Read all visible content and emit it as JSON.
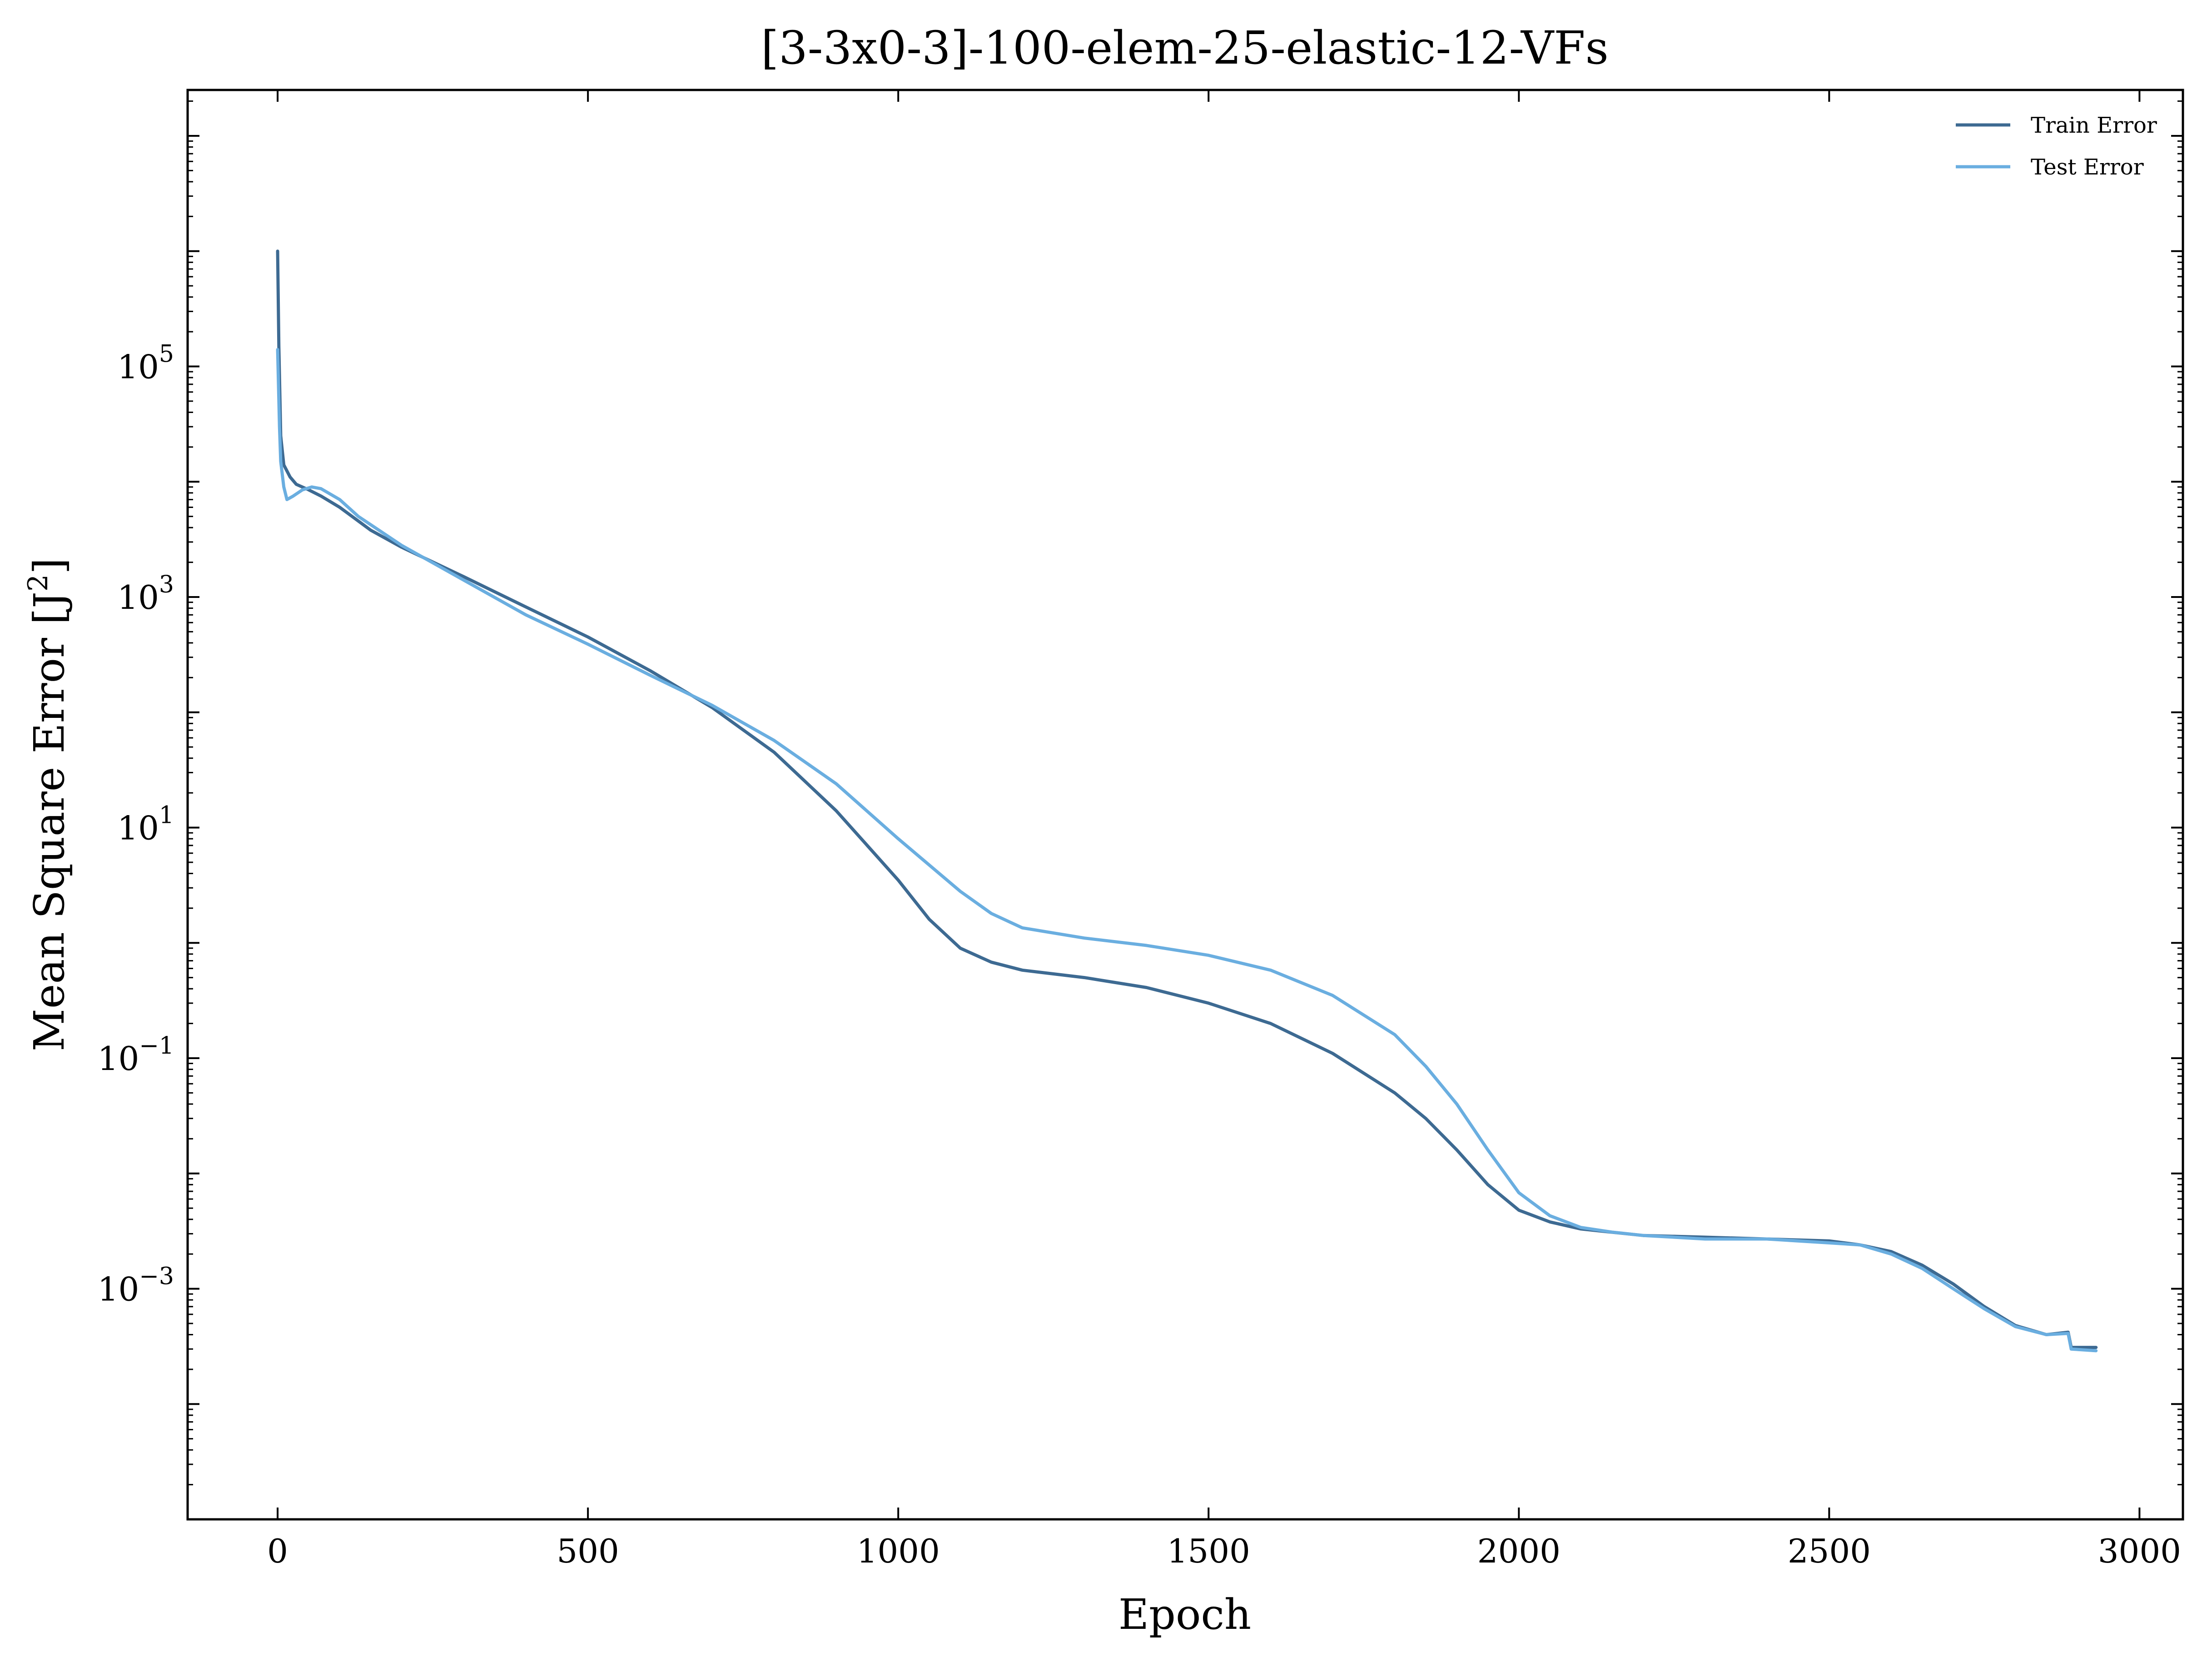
{
  "chart_data": {
    "type": "line",
    "title": "[3-3x0-3]-100-elem-25-elastic-12-VFs",
    "xlabel": "Epoch",
    "ylabel": "Mean Square Error [J",
    "ylabel_superscript": "2",
    "ylabel_suffix": "]",
    "y_scale": "log",
    "xlim": [
      -145,
      3070
    ],
    "ylim": [
      1e-05,
      25000000
    ],
    "grid": false,
    "legend_position": "top-right",
    "x_ticks": [
      {
        "value": 0,
        "label": "0"
      },
      {
        "value": 500,
        "label": "500"
      },
      {
        "value": 1000,
        "label": "1000"
      },
      {
        "value": 1500,
        "label": "1500"
      },
      {
        "value": 2000,
        "label": "2000"
      },
      {
        "value": 2500,
        "label": "2500"
      },
      {
        "value": 3000,
        "label": "3000"
      }
    ],
    "y_ticks": [
      {
        "value": 100000,
        "base": "10",
        "exp": "5"
      },
      {
        "value": 1000,
        "base": "10",
        "exp": "3"
      },
      {
        "value": 10,
        "base": "10",
        "exp": "1"
      },
      {
        "value": 0.1,
        "base": "10",
        "exp": "−1"
      },
      {
        "value": 0.001,
        "base": "10",
        "exp": "−3"
      }
    ],
    "series": [
      {
        "name": "Train Error",
        "color": "#3d6a92",
        "points": [
          [
            0,
            1000000
          ],
          [
            2,
            150000
          ],
          [
            5,
            25000
          ],
          [
            10,
            14000
          ],
          [
            20,
            11000
          ],
          [
            30,
            9500
          ],
          [
            50,
            8500
          ],
          [
            70,
            7500
          ],
          [
            100,
            6000
          ],
          [
            150,
            3800
          ],
          [
            200,
            2700
          ],
          [
            300,
            1500
          ],
          [
            400,
            820
          ],
          [
            500,
            450
          ],
          [
            600,
            230
          ],
          [
            700,
            110
          ],
          [
            800,
            45
          ],
          [
            900,
            14
          ],
          [
            1000,
            3.5
          ],
          [
            1050,
            1.6
          ],
          [
            1100,
            0.9
          ],
          [
            1150,
            0.68
          ],
          [
            1200,
            0.58
          ],
          [
            1300,
            0.5
          ],
          [
            1400,
            0.41
          ],
          [
            1500,
            0.3
          ],
          [
            1600,
            0.2
          ],
          [
            1700,
            0.11
          ],
          [
            1800,
            0.05
          ],
          [
            1850,
            0.03
          ],
          [
            1900,
            0.016
          ],
          [
            1950,
            0.008
          ],
          [
            2000,
            0.0048
          ],
          [
            2050,
            0.0038
          ],
          [
            2100,
            0.0033
          ],
          [
            2200,
            0.0029
          ],
          [
            2300,
            0.0028
          ],
          [
            2400,
            0.0027
          ],
          [
            2500,
            0.0026
          ],
          [
            2550,
            0.0024
          ],
          [
            2600,
            0.0021
          ],
          [
            2650,
            0.0016
          ],
          [
            2700,
            0.0011
          ],
          [
            2750,
            0.0007
          ],
          [
            2800,
            0.00048
          ],
          [
            2850,
            0.0004
          ],
          [
            2885,
            0.00042
          ],
          [
            2890,
            0.00031
          ],
          [
            2930,
            0.00031
          ]
        ]
      },
      {
        "name": "Test Error",
        "color": "#6aaee0",
        "points": [
          [
            0,
            140000
          ],
          [
            3,
            30000
          ],
          [
            5,
            15000
          ],
          [
            10,
            9000
          ],
          [
            15,
            7000
          ],
          [
            25,
            7500
          ],
          [
            40,
            8500
          ],
          [
            55,
            9000
          ],
          [
            70,
            8700
          ],
          [
            100,
            7000
          ],
          [
            130,
            5000
          ],
          [
            200,
            2800
          ],
          [
            300,
            1400
          ],
          [
            400,
            700
          ],
          [
            500,
            390
          ],
          [
            600,
            210
          ],
          [
            700,
            115
          ],
          [
            800,
            57
          ],
          [
            900,
            24
          ],
          [
            1000,
            8
          ],
          [
            1100,
            2.8
          ],
          [
            1150,
            1.8
          ],
          [
            1200,
            1.35
          ],
          [
            1300,
            1.1
          ],
          [
            1400,
            0.95
          ],
          [
            1500,
            0.78
          ],
          [
            1600,
            0.58
          ],
          [
            1700,
            0.35
          ],
          [
            1800,
            0.16
          ],
          [
            1850,
            0.085
          ],
          [
            1900,
            0.04
          ],
          [
            1950,
            0.016
          ],
          [
            2000,
            0.0068
          ],
          [
            2050,
            0.0043
          ],
          [
            2100,
            0.0034
          ],
          [
            2150,
            0.0031
          ],
          [
            2200,
            0.0029
          ],
          [
            2300,
            0.0027
          ],
          [
            2400,
            0.0027
          ],
          [
            2500,
            0.0025
          ],
          [
            2550,
            0.0024
          ],
          [
            2600,
            0.002
          ],
          [
            2650,
            0.0015
          ],
          [
            2700,
            0.001
          ],
          [
            2750,
            0.00067
          ],
          [
            2800,
            0.00047
          ],
          [
            2850,
            0.0004
          ],
          [
            2885,
            0.00041
          ],
          [
            2890,
            0.0003
          ],
          [
            2930,
            0.00029
          ]
        ]
      }
    ]
  }
}
